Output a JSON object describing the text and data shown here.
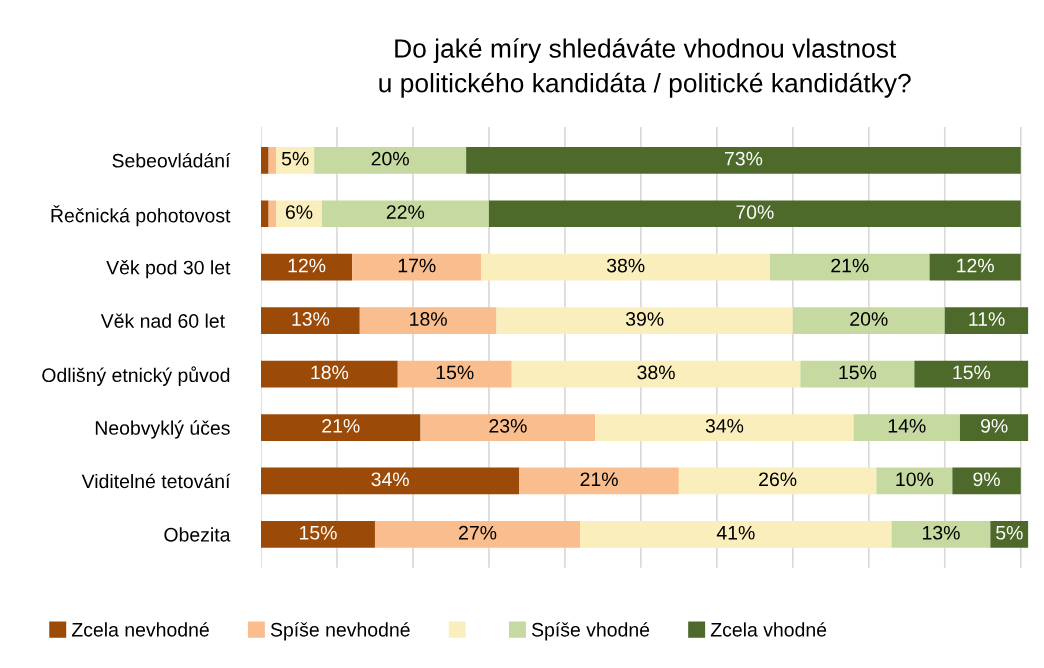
{
  "chart_data": {
    "type": "bar",
    "orientation": "horizontal",
    "stacked": true,
    "title": "Do jaké míry shledáváte vhodnou vlastnost\nu politického kandidáta / politické kandidátky?",
    "categories": [
      "Sebeovládání",
      "Řečnická pohotovost",
      "Věk pod 30 let",
      "Věk nad 60 let ",
      "Odlišný etnický původ",
      "Neobvyklý účes",
      "Viditelné tetování",
      "Obezita"
    ],
    "series": [
      {
        "name": "Zcela nevhodné",
        "color": "#9c4a08",
        "values": [
          1,
          1,
          12,
          13,
          18,
          21,
          34,
          15
        ],
        "value_labels": [
          null,
          null,
          "12%",
          "13%",
          "18%",
          "21%",
          "34%",
          "15%"
        ]
      },
      {
        "name": "Spíše nevhodné",
        "color": "#f9bd8e",
        "values": [
          1,
          1,
          17,
          18,
          15,
          23,
          21,
          27
        ],
        "value_labels": [
          null,
          null,
          "17%",
          "18%",
          "15%",
          "23%",
          "21%",
          "27%"
        ]
      },
      {
        "color": "#faeebc",
        "values": [
          5,
          6,
          38,
          39,
          38,
          34,
          26,
          41
        ],
        "value_labels": [
          "5%",
          "6%",
          "38%",
          "39%",
          "38%",
          "34%",
          "26%",
          "41%"
        ]
      },
      {
        "name": "Spíše vhodné",
        "color": "#c5d9a0",
        "values": [
          20,
          22,
          21,
          20,
          15,
          14,
          10,
          13
        ],
        "value_labels": [
          "20%",
          "22%",
          "21%",
          "20%",
          "15%",
          "14%",
          "10%",
          "13%"
        ]
      },
      {
        "name": "Zcela vhodné",
        "color": "#4e6a2b",
        "values": [
          73,
          70,
          12,
          11,
          15,
          9,
          9,
          5
        ],
        "value_labels": [
          "73%",
          "70%",
          "12%",
          "11%",
          "15%",
          "9%",
          "9%",
          "5%"
        ]
      }
    ],
    "xlim": [
      0,
      101
    ],
    "xticks": [
      {
        "value": 0,
        "label": null
      },
      {
        "value": 10,
        "label": null
      },
      {
        "value": 20,
        "label": null
      },
      {
        "value": 30,
        "label": null
      },
      {
        "value": 40,
        "label": null
      },
      {
        "value": 50,
        "label": null
      },
      {
        "value": 60,
        "label": null
      },
      {
        "value": 70,
        "label": null
      },
      {
        "value": 80,
        "label": null
      },
      {
        "value": 90,
        "label": null
      },
      {
        "value": 100,
        "label": null
      }
    ],
    "tick_labels": "y",
    "grid": "x",
    "legend": "bottom"
  }
}
